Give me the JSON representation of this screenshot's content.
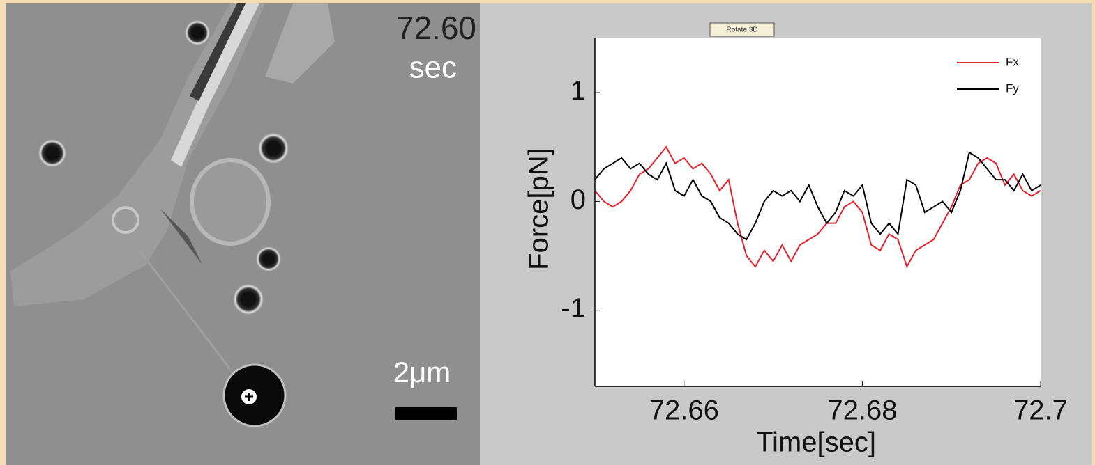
{
  "image": {
    "time": "72.60",
    "time_unit": "sec",
    "scale_label": "2μm"
  },
  "button": "Rotate 3D",
  "chart_data": {
    "type": "line",
    "xlabel": "Time[sec]",
    "ylabel": "Force[pN]",
    "x": [
      72.65,
      72.651,
      72.652,
      72.653,
      72.654,
      72.655,
      72.656,
      72.657,
      72.658,
      72.659,
      72.66,
      72.661,
      72.662,
      72.663,
      72.664,
      72.665,
      72.666,
      72.667,
      72.668,
      72.669,
      72.67,
      72.671,
      72.672,
      72.673,
      72.674,
      72.675,
      72.676,
      72.677,
      72.678,
      72.679,
      72.68,
      72.681,
      72.682,
      72.683,
      72.684,
      72.685,
      72.686,
      72.687,
      72.688,
      72.689,
      72.69,
      72.691,
      72.692,
      72.693,
      72.694,
      72.695,
      72.696,
      72.697,
      72.698,
      72.699,
      72.7
    ],
    "series": [
      {
        "name": "Fx",
        "color": "#e8202a",
        "values": [
          0.1,
          0.0,
          -0.05,
          0.0,
          0.1,
          0.25,
          0.3,
          0.4,
          0.5,
          0.35,
          0.4,
          0.3,
          0.35,
          0.25,
          0.1,
          0.2,
          -0.2,
          -0.5,
          -0.6,
          -0.45,
          -0.55,
          -0.4,
          -0.55,
          -0.4,
          -0.35,
          -0.3,
          -0.2,
          -0.2,
          -0.05,
          0.0,
          -0.1,
          -0.4,
          -0.45,
          -0.3,
          -0.35,
          -0.6,
          -0.45,
          -0.4,
          -0.35,
          -0.2,
          -0.05,
          0.15,
          0.2,
          0.35,
          0.4,
          0.35,
          0.15,
          0.25,
          0.1,
          0.05,
          0.1
        ]
      },
      {
        "name": "Fy",
        "color": "#000000",
        "values": [
          0.2,
          0.3,
          0.35,
          0.4,
          0.3,
          0.35,
          0.25,
          0.2,
          0.35,
          0.1,
          0.05,
          0.2,
          0.05,
          0.0,
          -0.15,
          -0.2,
          -0.3,
          -0.35,
          -0.2,
          0.0,
          0.1,
          0.05,
          0.1,
          0.0,
          0.15,
          -0.05,
          -0.2,
          -0.1,
          0.1,
          0.05,
          0.15,
          -0.2,
          -0.3,
          -0.2,
          -0.3,
          0.2,
          0.15,
          -0.1,
          -0.05,
          0.0,
          -0.1,
          0.1,
          0.45,
          0.4,
          0.3,
          0.2,
          0.2,
          0.1,
          0.25,
          0.1,
          0.15
        ]
      }
    ],
    "xlim": [
      72.65,
      72.7
    ],
    "ylim": [
      -1.7,
      1.5
    ],
    "xticks": [
      72.66,
      72.68,
      72.7
    ],
    "yticks": [
      -1,
      0,
      1
    ],
    "legend": "upper right"
  }
}
